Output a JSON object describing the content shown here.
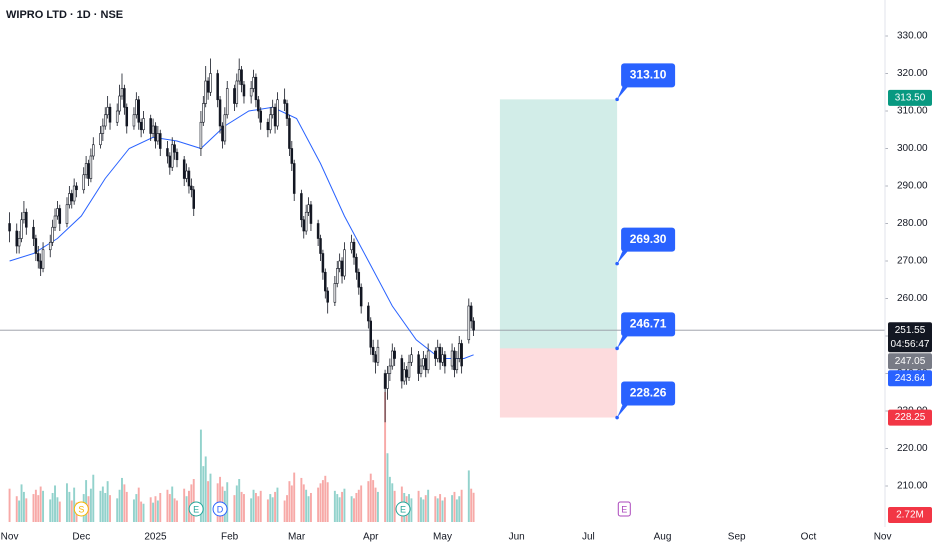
{
  "chart_data": {
    "type": "candlestick",
    "title": "WIPRO LTD · 1D · NSE",
    "xlim": [
      -4,
      366
    ],
    "ylim": [
      199.6,
      339.6
    ],
    "xticks": [
      {
        "value": 0,
        "label": "Nov"
      },
      {
        "value": 30,
        "label": "Dec"
      },
      {
        "value": 61,
        "label": "2025"
      },
      {
        "value": 92,
        "label": "Feb"
      },
      {
        "value": 120,
        "label": "Mar"
      },
      {
        "value": 151,
        "label": "Apr"
      },
      {
        "value": 181,
        "label": "May"
      },
      {
        "value": 212,
        "label": "Jun"
      },
      {
        "value": 242,
        "label": "Jul"
      },
      {
        "value": 273,
        "label": "Aug"
      },
      {
        "value": 304,
        "label": "Sep"
      },
      {
        "value": 334,
        "label": "Oct"
      },
      {
        "value": 365,
        "label": "Nov"
      }
    ],
    "yticks": [
      {
        "value": 330,
        "label": "330.00"
      },
      {
        "value": 320,
        "label": "320.00"
      },
      {
        "value": 310,
        "label": "310.00"
      },
      {
        "value": 300,
        "label": "300.00"
      },
      {
        "value": 290,
        "label": "290.00"
      },
      {
        "value": 280,
        "label": "280.00"
      },
      {
        "value": 270,
        "label": "270.00"
      },
      {
        "value": 260,
        "label": "260.00"
      },
      {
        "value": 250,
        "label": "250.00"
      },
      {
        "value": 240,
        "label": "240.00"
      },
      {
        "value": 230,
        "label": "230.00"
      },
      {
        "value": 220,
        "label": "220.00"
      },
      {
        "value": 210,
        "label": "210.00"
      }
    ],
    "up_color": "#ffffff",
    "down_color": "#131722",
    "volume_up_color": "#26a69a",
    "volume_down_color": "#ef5350",
    "candles": [
      [
        0,
        280,
        283,
        275,
        278,
        3.1
      ],
      [
        3,
        278,
        280,
        272,
        274,
        2.4
      ],
      [
        4,
        274,
        278,
        272,
        276,
        2.0
      ],
      [
        5,
        276,
        283,
        275,
        281,
        3.5
      ],
      [
        6,
        281,
        286,
        280,
        283,
        2.8
      ],
      [
        7,
        283,
        284,
        277,
        279,
        2.2
      ],
      [
        10,
        279,
        281,
        274,
        276,
        2.6
      ],
      [
        11,
        276,
        277,
        270,
        272,
        3.0
      ],
      [
        12,
        272,
        274,
        268,
        270,
        2.5
      ],
      [
        13,
        270,
        272,
        266,
        268,
        3.3
      ],
      [
        14,
        268,
        275,
        267,
        273,
        2.9
      ],
      [
        17,
        273,
        277,
        271,
        275,
        2.1
      ],
      [
        18,
        275,
        281,
        274,
        279,
        2.7
      ],
      [
        19,
        279,
        284,
        278,
        282,
        3.4
      ],
      [
        20,
        282,
        286,
        281,
        284,
        2.3
      ],
      [
        21,
        284,
        285,
        278,
        280,
        1.9
      ],
      [
        24,
        280,
        287,
        279,
        285,
        3.6
      ],
      [
        25,
        285,
        290,
        284,
        288,
        2.8
      ],
      [
        26,
        288,
        289,
        284,
        286,
        2.0
      ],
      [
        27,
        286,
        292,
        285,
        290,
        3.2
      ],
      [
        28,
        290,
        291,
        287,
        289,
        1.8
      ],
      [
        31,
        289,
        295,
        288,
        293,
        2.6
      ],
      [
        32,
        293,
        298,
        292,
        296,
        3.9
      ],
      [
        33,
        296,
        297,
        290,
        292,
        2.4
      ],
      [
        34,
        292,
        300,
        291,
        298,
        3.1
      ],
      [
        35,
        298,
        303,
        297,
        301,
        4.4
      ],
      [
        38,
        301,
        306,
        300,
        304,
        2.9
      ],
      [
        39,
        304,
        308,
        302,
        306,
        3.3
      ],
      [
        40,
        306,
        311,
        305,
        309,
        2.7
      ],
      [
        41,
        309,
        314,
        308,
        311,
        3.8
      ],
      [
        42,
        311,
        312,
        305,
        307,
        2.5
      ],
      [
        45,
        307,
        312,
        306,
        310,
        2.2
      ],
      [
        46,
        310,
        317,
        309,
        314,
        3.0
      ],
      [
        47,
        314,
        320,
        313,
        316,
        4.1
      ],
      [
        48,
        316,
        317,
        309,
        311,
        3.5
      ],
      [
        49,
        311,
        312,
        304,
        306,
        2.8
      ],
      [
        52,
        306,
        311,
        305,
        309,
        2.1
      ],
      [
        53,
        309,
        315,
        308,
        313,
        2.6
      ],
      [
        54,
        313,
        314,
        305,
        307,
        3.2
      ],
      [
        55,
        307,
        308,
        303,
        305,
        1.9
      ],
      [
        56,
        305,
        310,
        304,
        308,
        1.7
      ],
      [
        59,
        308,
        309,
        302,
        304,
        2.3
      ],
      [
        60,
        304,
        308,
        303,
        306,
        1.8
      ],
      [
        61,
        306,
        307,
        300,
        302,
        2.4
      ],
      [
        62,
        302,
        306,
        301,
        304,
        2.0
      ],
      [
        63,
        304,
        305,
        298,
        300,
        2.7
      ],
      [
        66,
        300,
        302,
        296,
        298,
        3.0
      ],
      [
        67,
        298,
        299,
        293,
        295,
        2.6
      ],
      [
        68,
        295,
        303,
        294,
        301,
        3.3
      ],
      [
        69,
        301,
        302,
        297,
        299,
        2.2
      ],
      [
        70,
        299,
        300,
        295,
        297,
        2.0
      ],
      [
        73,
        297,
        298,
        290,
        292,
        3.1
      ],
      [
        74,
        292,
        296,
        291,
        294,
        2.4
      ],
      [
        75,
        294,
        295,
        288,
        290,
        2.9
      ],
      [
        76,
        290,
        292,
        287,
        289,
        3.5
      ],
      [
        77,
        289,
        290,
        282,
        284,
        4.0
      ],
      [
        80,
        300,
        310,
        298,
        307,
        8.6
      ],
      [
        81,
        307,
        314,
        306,
        312,
        5.2
      ],
      [
        82,
        312,
        322,
        311,
        318,
        6.1
      ],
      [
        83,
        318,
        319,
        313,
        315,
        3.8
      ],
      [
        84,
        315,
        324,
        314,
        320,
        4.5
      ],
      [
        87,
        320,
        321,
        311,
        313,
        3.6
      ],
      [
        88,
        313,
        314,
        304,
        306,
        4.2
      ],
      [
        89,
        306,
        307,
        300,
        302,
        3.3
      ],
      [
        90,
        302,
        311,
        301,
        309,
        2.9
      ],
      [
        91,
        309,
        318,
        308,
        316,
        3.7
      ],
      [
        94,
        316,
        317,
        310,
        312,
        2.5
      ],
      [
        95,
        312,
        320,
        311,
        318,
        3.4
      ],
      [
        96,
        318,
        324,
        317,
        321,
        4.0
      ],
      [
        97,
        321,
        322,
        315,
        317,
        2.8
      ],
      [
        98,
        317,
        318,
        312,
        314,
        2.6
      ],
      [
        101,
        314,
        318,
        312,
        316,
        2.2
      ],
      [
        102,
        316,
        321,
        315,
        319,
        3.0
      ],
      [
        103,
        319,
        320,
        311,
        313,
        2.7
      ],
      [
        104,
        313,
        314,
        308,
        310,
        2.4
      ],
      [
        105,
        310,
        311,
        305,
        307,
        2.9
      ],
      [
        108,
        307,
        308,
        303,
        305,
        2.1
      ],
      [
        109,
        305,
        311,
        304,
        309,
        2.6
      ],
      [
        110,
        309,
        313,
        308,
        311,
        2.3
      ],
      [
        111,
        311,
        312,
        304,
        306,
        2.8
      ],
      [
        112,
        306,
        315,
        305,
        313,
        3.2
      ],
      [
        115,
        313,
        316,
        310,
        312,
        2.0
      ],
      [
        116,
        312,
        313,
        306,
        308,
        2.5
      ],
      [
        117,
        308,
        309,
        298,
        300,
        3.8
      ],
      [
        118,
        300,
        302,
        294,
        296,
        3.4
      ],
      [
        119,
        296,
        297,
        286,
        288,
        4.6
      ],
      [
        122,
        288,
        289,
        279,
        281,
        4.1
      ],
      [
        123,
        281,
        282,
        276,
        278,
        3.5
      ],
      [
        124,
        278,
        285,
        277,
        283,
        3.0
      ],
      [
        125,
        283,
        287,
        282,
        285,
        2.4
      ],
      [
        126,
        285,
        286,
        278,
        280,
        2.7
      ],
      [
        129,
        280,
        281,
        274,
        276,
        3.2
      ],
      [
        130,
        276,
        277,
        270,
        272,
        3.6
      ],
      [
        131,
        272,
        273,
        265,
        267,
        3.9
      ],
      [
        132,
        267,
        268,
        260,
        262,
        4.3
      ],
      [
        133,
        262,
        263,
        256,
        259,
        3.7
      ],
      [
        136,
        259,
        266,
        258,
        264,
        2.9
      ],
      [
        137,
        264,
        270,
        263,
        268,
        2.6
      ],
      [
        138,
        268,
        272,
        267,
        270,
        2.3
      ],
      [
        139,
        270,
        271,
        264,
        266,
        2.8
      ],
      [
        140,
        266,
        275,
        265,
        273,
        3.1
      ],
      [
        143,
        273,
        277,
        272,
        275,
        2.4
      ],
      [
        144,
        275,
        276,
        269,
        271,
        2.2
      ],
      [
        145,
        271,
        272,
        265,
        267,
        2.7
      ],
      [
        146,
        267,
        268,
        261,
        263,
        3.0
      ],
      [
        147,
        263,
        264,
        256,
        258,
        3.4
      ],
      [
        150,
        258,
        259,
        252,
        254,
        3.8
      ],
      [
        151,
        254,
        255,
        245,
        247,
        4.5
      ],
      [
        152,
        247,
        249,
        243,
        245,
        3.9
      ],
      [
        153,
        245,
        246,
        240,
        243,
        3.2
      ],
      [
        154,
        243,
        249,
        242,
        247,
        2.8
      ],
      [
        157,
        240,
        241,
        227,
        236,
        12.1
      ],
      [
        158,
        236,
        242,
        233,
        240,
        6.4
      ],
      [
        159,
        240,
        244,
        238,
        242,
        4.2
      ],
      [
        160,
        242,
        248,
        241,
        246,
        3.6
      ],
      [
        161,
        246,
        247,
        242,
        244,
        2.9
      ],
      [
        164,
        244,
        245,
        236,
        238,
        3.3
      ],
      [
        165,
        238,
        243,
        237,
        241,
        2.7
      ],
      [
        166,
        241,
        242,
        237,
        239,
        2.4
      ],
      [
        167,
        239,
        245,
        238,
        243,
        2.6
      ],
      [
        168,
        243,
        247,
        242,
        245,
        2.2
      ],
      [
        171,
        245,
        246,
        238,
        240,
        2.9
      ],
      [
        172,
        240,
        244,
        239,
        242,
        2.3
      ],
      [
        173,
        242,
        246,
        241,
        244,
        2.1
      ],
      [
        174,
        244,
        245,
        239,
        241,
        2.5
      ],
      [
        175,
        241,
        248,
        240,
        246,
        3.0
      ],
      [
        178,
        246,
        247,
        242,
        244,
        2.4
      ],
      [
        179,
        244,
        249,
        243,
        247,
        2.2
      ],
      [
        180,
        247,
        248,
        241,
        243,
        2.6
      ],
      [
        181,
        243,
        247,
        242,
        245,
        2.0
      ],
      [
        182,
        245,
        246,
        240,
        242,
        2.3
      ],
      [
        185,
        242,
        248,
        241,
        246,
        2.5
      ],
      [
        186,
        246,
        247,
        239,
        241,
        2.8
      ],
      [
        187,
        241,
        246,
        240,
        244,
        2.1
      ],
      [
        188,
        244,
        250,
        243,
        248,
        2.4
      ],
      [
        189,
        248,
        249,
        240,
        242,
        3.0
      ],
      [
        192,
        249,
        260,
        248,
        258,
        4.8
      ],
      [
        193,
        258,
        259,
        252,
        254,
        3.1
      ],
      [
        194,
        254,
        255,
        250,
        251.55,
        2.72
      ]
    ],
    "moving_average": {
      "color": "#2962ff",
      "x": [
        0,
        10,
        20,
        30,
        40,
        50,
        60,
        70,
        80,
        90,
        100,
        110,
        120,
        130,
        140,
        150,
        160,
        170,
        180,
        190,
        194
      ],
      "values": [
        270,
        272,
        276,
        282,
        292,
        300,
        303,
        302,
        300,
        306,
        310,
        311,
        308,
        296,
        282,
        270,
        258,
        249,
        244,
        244,
        245
      ]
    },
    "position": {
      "x_start": 205,
      "x_end": 254,
      "profit_color": "rgba(8,153,129,0.18)",
      "loss_color": "rgba(242,54,69,0.18)",
      "label_color": "#2962ff",
      "levels": [
        {
          "value": 313.1,
          "label": "313.10"
        },
        {
          "value": 269.3,
          "label": "269.30"
        },
        {
          "value": 246.71,
          "label": "246.71"
        },
        {
          "value": 228.26,
          "label": "228.26"
        }
      ]
    },
    "price_tags": [
      {
        "value": 313.5,
        "label": "313.50",
        "color": "#089981"
      },
      {
        "value": 251.55,
        "label": "251.55",
        "color": "#131722",
        "sub": "04:56:47"
      },
      {
        "value": 247.05,
        "label": "247.05",
        "color": "#787b86"
      },
      {
        "value": 243.64,
        "label": "243.64",
        "color": "#2962ff"
      },
      {
        "value": 228.25,
        "label": "228.25",
        "color": "#f23645"
      }
    ],
    "volume_tag": {
      "label": "2.72M",
      "color": "#f23645"
    },
    "events": [
      {
        "x": 30,
        "label": "S",
        "color": "#f5b400"
      },
      {
        "x": 78,
        "label": "E",
        "color": "#26a69a"
      },
      {
        "x": 88,
        "label": "D",
        "color": "#2962ff"
      },
      {
        "x": 164.5,
        "label": "E",
        "color": "#26a69a"
      },
      {
        "x": 257,
        "label": "E",
        "color": "#ab47bc"
      }
    ]
  }
}
